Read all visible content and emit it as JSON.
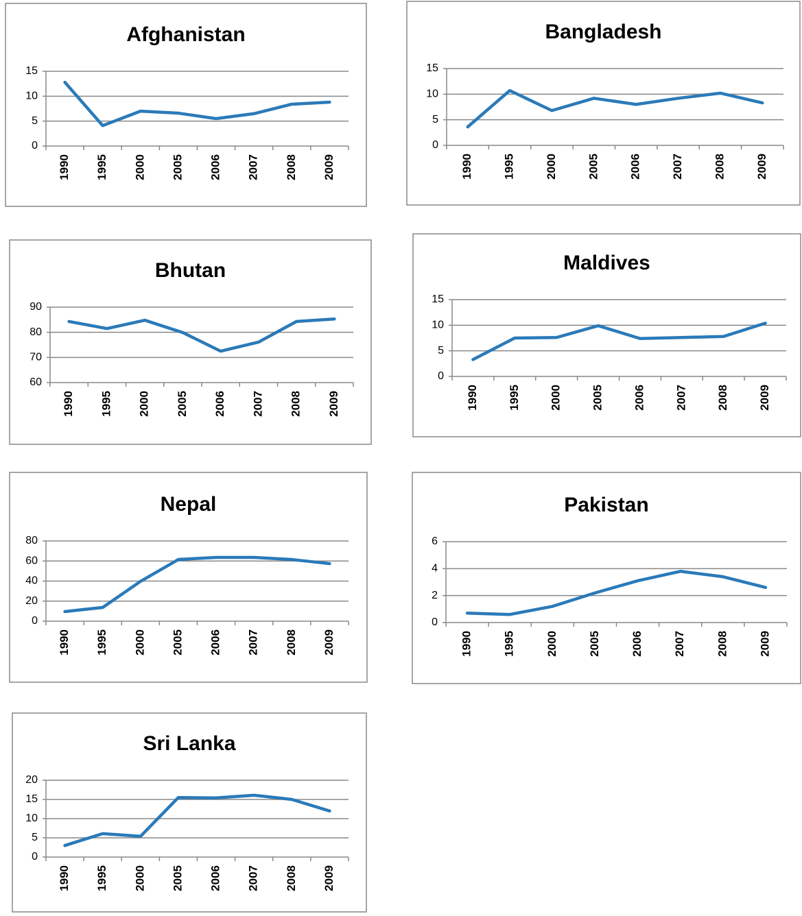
{
  "chart_data": [
    {
      "type": "line",
      "title": "Afghanistan",
      "categories": [
        "1990",
        "1995",
        "2000",
        "2005",
        "2006",
        "2007",
        "2008",
        "2009"
      ],
      "values": [
        12.8,
        4.1,
        7.0,
        6.6,
        5.5,
        6.5,
        8.4,
        8.8
      ],
      "color": "#2a7ab9",
      "ylim": [
        0,
        15
      ],
      "yticks": [
        0,
        5,
        10,
        15
      ],
      "grid": true
    },
    {
      "type": "line",
      "title": "Bangladesh",
      "categories": [
        "1990",
        "1995",
        "2000",
        "2005",
        "2006",
        "2007",
        "2008",
        "2009"
      ],
      "values": [
        3.6,
        10.7,
        6.8,
        9.2,
        8.0,
        9.2,
        10.2,
        8.3
      ],
      "color": "#2a7ab9",
      "ylim": [
        0,
        15
      ],
      "yticks": [
        0,
        5,
        10,
        15
      ],
      "grid": true
    },
    {
      "type": "line",
      "title": "Bhutan",
      "categories": [
        "1990",
        "1995",
        "2000",
        "2005",
        "2006",
        "2007",
        "2008",
        "2009"
      ],
      "values": [
        84.3,
        81.5,
        84.8,
        79.9,
        72.5,
        76.1,
        84.3,
        85.3
      ],
      "color": "#2a7ab9",
      "ylim": [
        60,
        90
      ],
      "yticks": [
        60,
        70,
        80,
        90
      ],
      "grid": true
    },
    {
      "type": "line",
      "title": "Maldives",
      "categories": [
        "1990",
        "1995",
        "2000",
        "2005",
        "2006",
        "2007",
        "2008",
        "2009"
      ],
      "values": [
        3.3,
        7.5,
        7.6,
        9.9,
        7.4,
        7.6,
        7.8,
        10.4
      ],
      "color": "#2a7ab9",
      "ylim": [
        0,
        15
      ],
      "yticks": [
        0,
        5,
        10,
        15
      ],
      "grid": true
    },
    {
      "type": "line",
      "title": "Nepal",
      "categories": [
        "1990",
        "1995",
        "2000",
        "2005",
        "2006",
        "2007",
        "2008",
        "2009"
      ],
      "values": [
        9.6,
        13.7,
        39.7,
        61.5,
        63.6,
        63.6,
        61.5,
        57.4
      ],
      "color": "#2a7ab9",
      "ylim": [
        0,
        80
      ],
      "yticks": [
        0,
        20,
        40,
        60,
        80
      ],
      "grid": true
    },
    {
      "type": "line",
      "title": "Pakistan",
      "categories": [
        "1990",
        "1995",
        "2000",
        "2005",
        "2006",
        "2007",
        "2008",
        "2009"
      ],
      "values": [
        0.7,
        0.6,
        1.2,
        2.2,
        3.1,
        3.8,
        3.4,
        2.6
      ],
      "color": "#2a7ab9",
      "ylim": [
        0,
        6
      ],
      "yticks": [
        0,
        2,
        4,
        6
      ],
      "grid": true
    },
    {
      "type": "line",
      "title": "Sri Lanka",
      "categories": [
        "1990",
        "1995",
        "2000",
        "2005",
        "2006",
        "2007",
        "2008",
        "2009"
      ],
      "values": [
        3.0,
        6.1,
        5.4,
        15.5,
        15.4,
        16.1,
        15.0,
        12.0
      ],
      "color": "#2a7ab9",
      "ylim": [
        0,
        20
      ],
      "yticks": [
        0,
        5,
        10,
        15,
        20
      ],
      "grid": true
    }
  ]
}
